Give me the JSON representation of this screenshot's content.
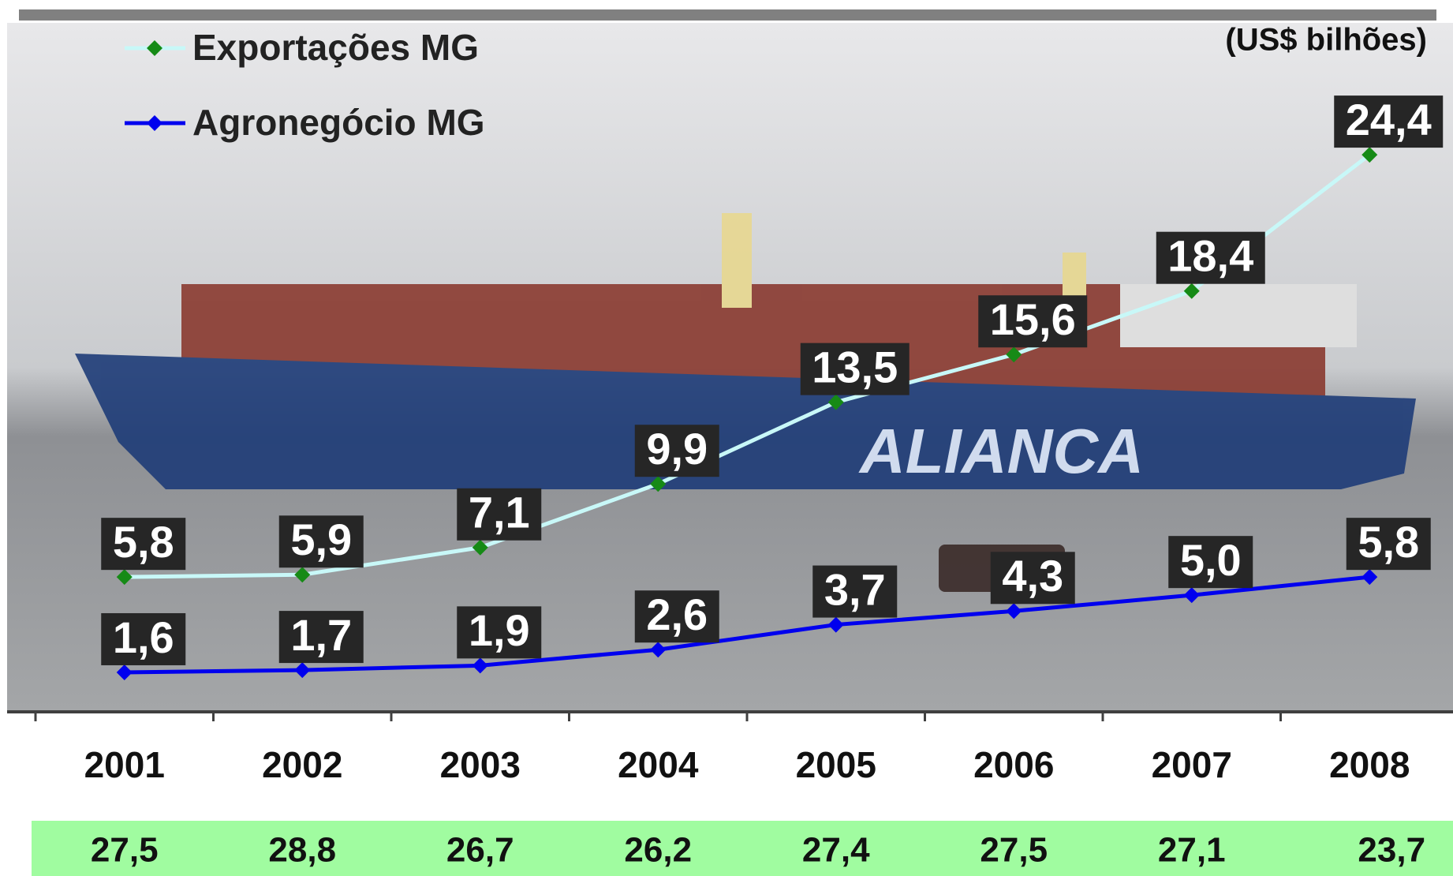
{
  "chart_data": {
    "type": "line",
    "unit_note": "(US$ bilhões)",
    "categories": [
      "2001",
      "2002",
      "2003",
      "2004",
      "2005",
      "2006",
      "2007",
      "2008"
    ],
    "series": [
      {
        "name": "Exportações MG",
        "color": "#c8f8f8",
        "marker_color": "#168a16",
        "values": [
          5.8,
          5.9,
          7.1,
          9.9,
          13.5,
          15.6,
          18.4,
          24.4
        ],
        "value_labels": [
          "5,8",
          "5,9",
          "7,1",
          "9,9",
          "13,5",
          "15,6",
          "18,4",
          "24,4"
        ]
      },
      {
        "name": "Agronegócio MG",
        "color": "#0000ee",
        "marker_color": "#0000ee",
        "values": [
          1.6,
          1.7,
          1.9,
          2.6,
          3.7,
          4.3,
          5.0,
          5.8
        ],
        "value_labels": [
          "1,6",
          "1,7",
          "1,9",
          "2,6",
          "3,7",
          "4,3",
          "5,0",
          "5,8"
        ]
      }
    ],
    "ylim": [
      0,
      30
    ],
    "legend": "top-left",
    "bottom_row": {
      "color": "#a0fca0",
      "values": [
        27.5,
        28.8,
        26.7,
        26.2,
        27.4,
        27.5,
        27.1,
        23.7
      ],
      "value_labels": [
        "27,5",
        "28,8",
        "26,7",
        "26,2",
        "27,4",
        "27,5",
        "27,1",
        "23,7"
      ]
    }
  }
}
